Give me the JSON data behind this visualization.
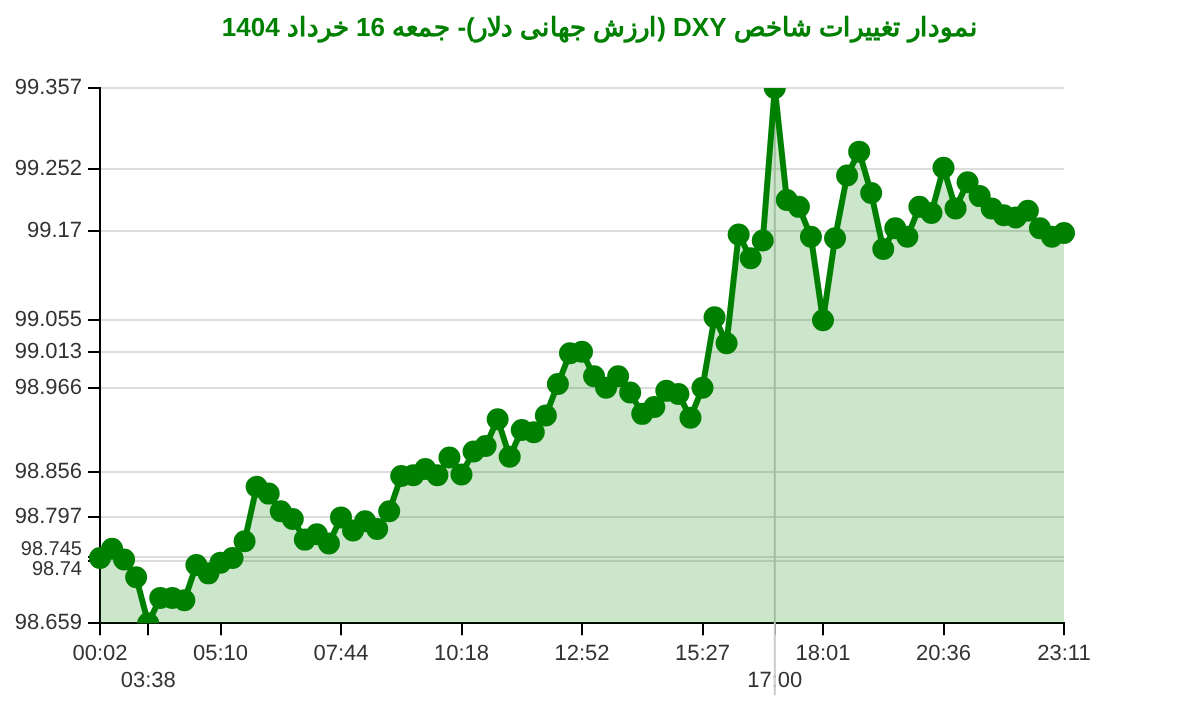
{
  "chart_data": {
    "type": "area",
    "title": "نمودار تغییرات شاخص DXY (ارزش جهانی دلار)- جمعه  16 خرداد 1404",
    "categories": [
      "00:02",
      null,
      null,
      null,
      "03:38",
      null,
      null,
      null,
      null,
      null,
      "05:10",
      null,
      null,
      null,
      null,
      null,
      null,
      null,
      null,
      null,
      "07:44",
      null,
      null,
      null,
      null,
      null,
      null,
      null,
      null,
      null,
      "10:18",
      null,
      null,
      null,
      null,
      null,
      null,
      null,
      null,
      null,
      "12:52",
      null,
      null,
      null,
      null,
      null,
      null,
      null,
      null,
      null,
      "15:27",
      null,
      null,
      null,
      null,
      null,
      "17:00",
      null,
      null,
      null,
      "18:01",
      null,
      null,
      null,
      null,
      null,
      null,
      null,
      null,
      null,
      "20:36",
      null,
      null,
      null,
      null,
      null,
      null,
      null,
      null,
      null,
      "23:11"
    ],
    "series": [
      {
        "color": "#008000",
        "values": [
          98.744,
          98.756,
          98.742,
          98.719,
          98.659,
          98.692,
          98.692,
          98.689,
          98.735,
          98.724,
          98.738,
          98.744,
          98.766,
          98.837,
          98.828,
          98.805,
          98.795,
          98.768,
          98.775,
          98.763,
          98.797,
          98.78,
          98.792,
          98.782,
          98.805,
          98.851,
          98.852,
          98.86,
          98.852,
          98.875,
          98.853,
          98.883,
          98.89,
          98.925,
          98.876,
          98.911,
          98.908,
          98.93,
          98.971,
          99.011,
          99.013,
          98.981,
          98.966,
          98.981,
          98.96,
          98.932,
          98.941,
          98.962,
          98.958,
          98.927,
          98.966,
          99.058,
          99.024,
          99.166,
          99.135,
          99.158,
          99.357,
          99.211,
          99.202,
          99.163,
          99.054,
          99.161,
          99.243,
          99.274,
          99.22,
          99.147,
          99.174,
          99.163,
          99.202,
          99.194,
          99.253,
          99.2,
          99.234,
          99.216,
          99.2,
          99.191,
          99.188,
          99.197,
          99.174,
          99.163,
          99.168
        ]
      }
    ],
    "ylim": [
      98.659,
      99.357
    ],
    "yticks": [
      98.659,
      98.74,
      98.745,
      98.797,
      98.856,
      98.966,
      99.013,
      99.055,
      99.17,
      99.252,
      99.357
    ],
    "grid": "y",
    "marker": "circle",
    "legend": false,
    "ref_lines": [
      {
        "axis": "x",
        "value": "17:00",
        "color": "#cccccc"
      }
    ]
  }
}
